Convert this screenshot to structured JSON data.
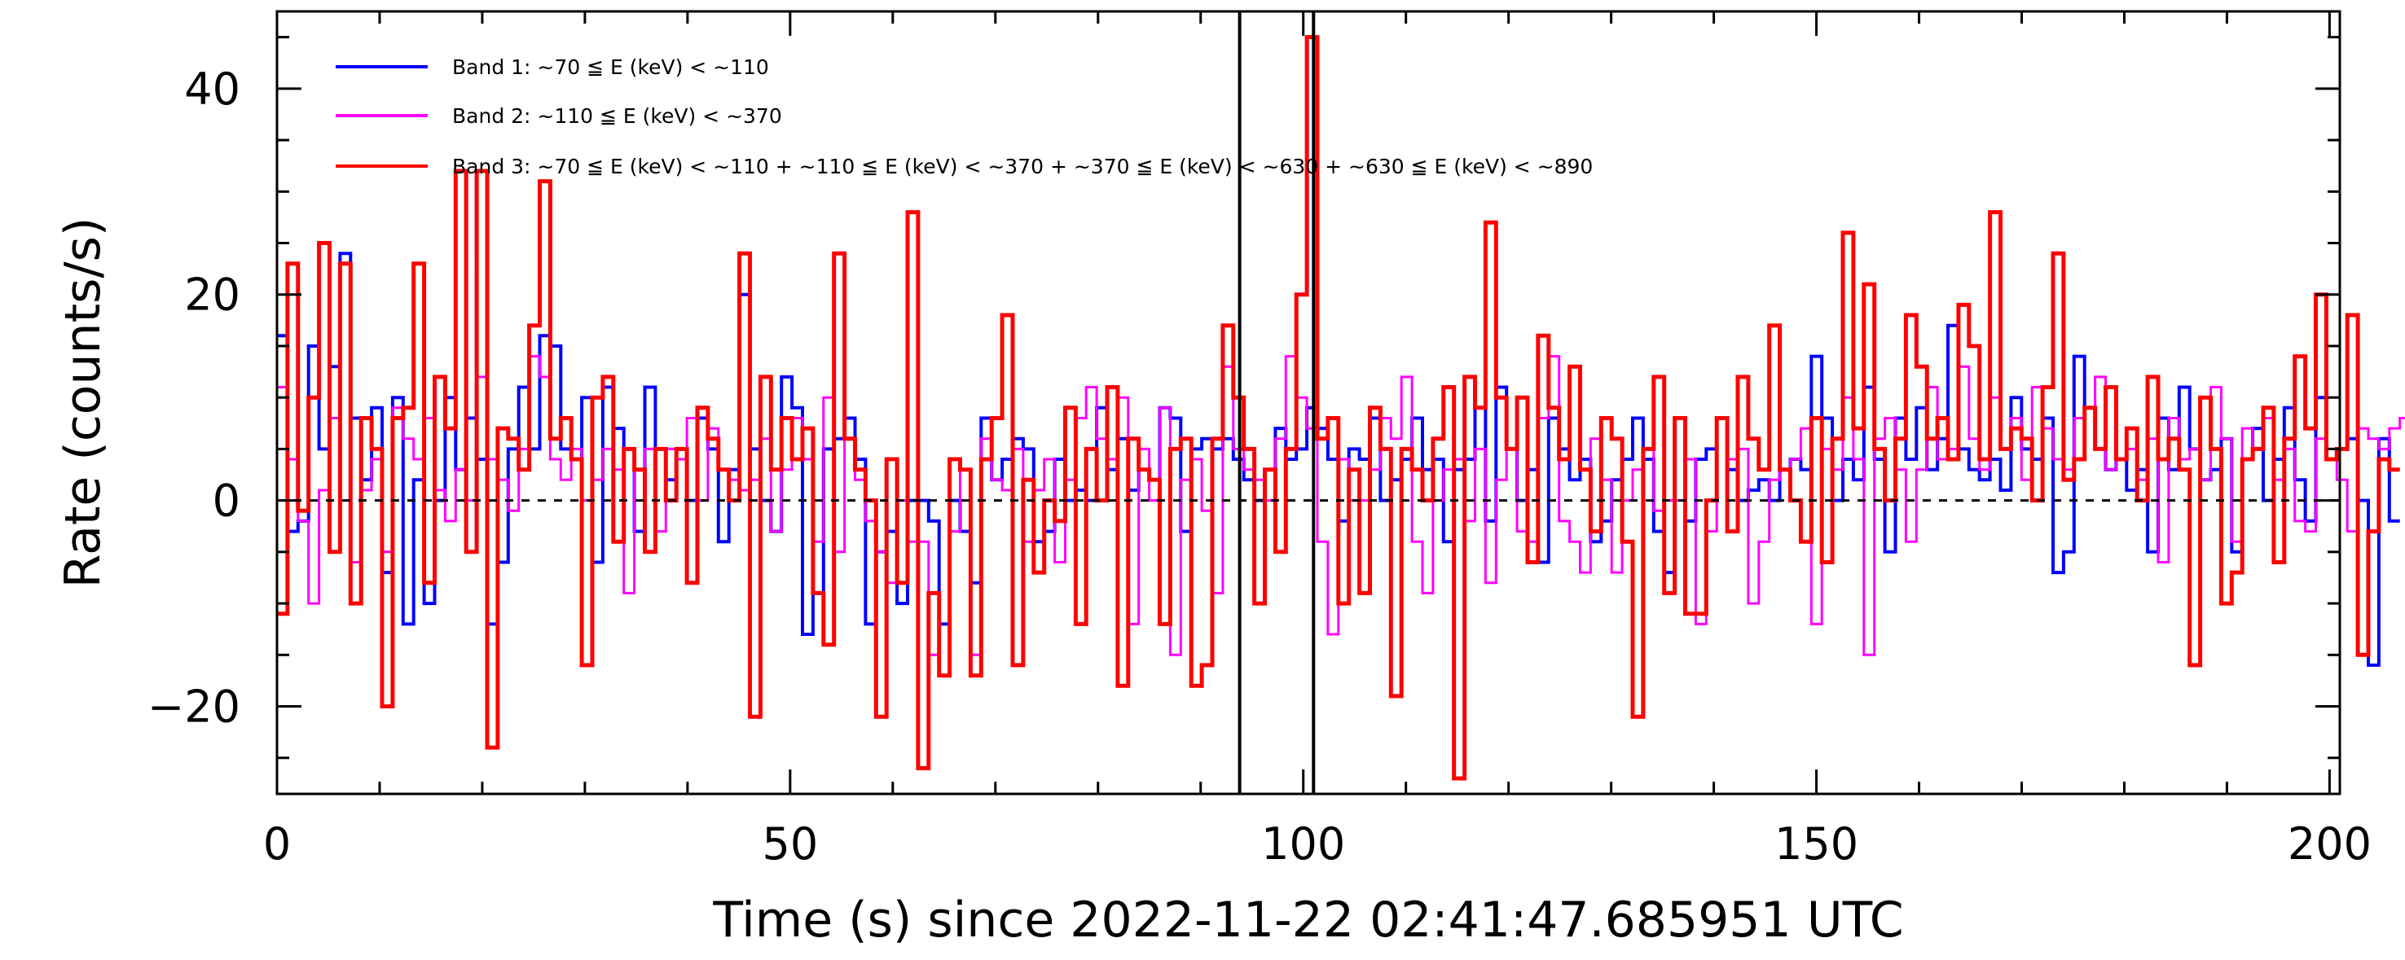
{
  "chart_data": {
    "type": "line",
    "style": "histogram-step",
    "title": "",
    "xlabel": "Time (s) since 2022-11-22 02:41:47.685951 UTC",
    "ylabel": "Rate (counts/s)",
    "xlim": [
      0,
      201
    ],
    "ylim": [
      -28.5,
      47.5
    ],
    "x_ticks": [
      0,
      50,
      100,
      150,
      200
    ],
    "x_tick_labels": [
      "0",
      "50",
      "100",
      "150",
      "200"
    ],
    "y_ticks": [
      -20,
      0,
      20,
      40
    ],
    "y_tick_labels": [
      "−20",
      "0",
      "20",
      "40"
    ],
    "bin_width_s": 1.024,
    "zero_line": 0,
    "markers_x": [
      93.8,
      101.0
    ],
    "legend": [
      "Band 1: ~70 ≦ E (keV) < ~110",
      "Band 2: ~110 ≦ E (keV) < ~370",
      "Band 3: ~70 ≦ E (keV) < ~110 + ~110 ≦ E (keV) < ~370 + ~370 ≦ E (keV) < ~630 + ~630 ≦ E (keV) < ~890"
    ],
    "series": [
      {
        "name": "Band 1: ~70 ≦ E (keV) < ~110",
        "color": "#0000ff",
        "values": [
          16,
          -3,
          -2,
          15,
          5,
          13,
          24,
          8,
          2,
          9,
          -7,
          10,
          -12,
          2,
          -10,
          0,
          10,
          3,
          8,
          4,
          -12,
          -6,
          5,
          11,
          5,
          16,
          15,
          5,
          4,
          10,
          -6,
          11,
          7,
          5,
          -3,
          11,
          5,
          2,
          5,
          0,
          8,
          5,
          -4,
          3,
          20,
          5,
          0,
          -3,
          12,
          9,
          -13,
          -9,
          5,
          6,
          8,
          4,
          -12,
          -5,
          -3,
          -10,
          0,
          0,
          -2,
          -12,
          0,
          -3,
          -8,
          8,
          2,
          4,
          6,
          5,
          -4,
          -3,
          4,
          0,
          1,
          0,
          9,
          3,
          6,
          1,
          3,
          2,
          9,
          8,
          -3,
          5,
          6,
          5,
          6,
          4,
          2,
          0,
          3,
          7,
          4,
          5,
          9,
          7,
          4,
          -2,
          5,
          4,
          8,
          0,
          2,
          4,
          8,
          3,
          4,
          -4,
          3,
          4,
          9,
          -2,
          11,
          5,
          0,
          3,
          -6,
          8,
          5,
          2,
          4,
          -4,
          -2,
          2,
          4,
          8,
          4,
          -3,
          -7,
          8,
          -2,
          4,
          5,
          8,
          3,
          0,
          1,
          2,
          0,
          3,
          4,
          3,
          14,
          8,
          0,
          4,
          2,
          11,
          4,
          -5,
          8,
          4,
          9,
          3,
          6,
          17,
          5,
          3,
          2,
          4,
          1,
          10,
          5,
          4,
          8,
          -7,
          -5,
          14,
          9,
          5,
          3,
          4,
          1,
          3,
          -5,
          8,
          3,
          11,
          5,
          2,
          3,
          6,
          -5,
          4,
          7,
          0,
          4,
          9,
          2,
          -2,
          10,
          4,
          5,
          6,
          0,
          -16,
          6,
          -2
        ]
      },
      {
        "name": "Band 2: ~110 ≦ E (keV) < ~370",
        "color": "#ff00ff",
        "values": [
          11,
          4,
          -2,
          -10,
          1,
          8,
          0,
          -6,
          1,
          4,
          -5,
          9,
          6,
          4,
          8,
          1,
          -2,
          3,
          0,
          12,
          4,
          2,
          -1,
          5,
          14,
          12,
          4,
          2,
          5,
          0,
          2,
          5,
          3,
          -9,
          3,
          5,
          -3,
          5,
          4,
          8,
          0,
          7,
          3,
          2,
          1,
          2,
          6,
          -3,
          3,
          8,
          4,
          -4,
          10,
          -5,
          6,
          2,
          -2,
          -5,
          -8,
          0,
          -4,
          -4,
          -15,
          -17,
          -3,
          3,
          -15,
          6,
          2,
          1,
          5,
          -4,
          1,
          4,
          -6,
          2,
          8,
          11,
          6,
          4,
          10,
          -12,
          5,
          0,
          9,
          -15,
          2,
          4,
          -1,
          -9,
          13,
          5,
          3,
          2,
          0,
          6,
          14,
          10,
          7,
          -4,
          -13,
          4,
          0,
          0,
          3,
          8,
          6,
          12,
          -4,
          -9,
          0,
          3,
          4,
          -2,
          5,
          -8,
          2,
          5,
          -3,
          -4,
          8,
          14,
          -2,
          -4,
          -7,
          6,
          2,
          -7,
          0,
          3,
          5,
          -1,
          0,
          0,
          4,
          -12,
          -3,
          8,
          4,
          5,
          -10,
          -4,
          2,
          3,
          4,
          7,
          -12,
          5,
          3,
          10,
          4,
          -15,
          6,
          8,
          3,
          -4,
          3,
          11,
          4,
          5,
          13,
          6,
          3,
          10,
          5,
          8,
          2,
          11,
          7,
          4,
          3,
          8,
          9,
          12,
          3,
          4,
          5,
          2,
          6,
          -6,
          8,
          4,
          5,
          2,
          11,
          6,
          -4,
          7,
          5,
          8,
          2,
          5,
          -2,
          -3,
          6,
          5,
          2,
          -3,
          7,
          6,
          5,
          7,
          8,
          -16,
          7,
          6
        ]
      },
      {
        "name": "Band 3: ~70 ≦ E (keV) < ~110 + ~110 ≦ E (keV) < ~370 + ~370 ≦ E (keV) < ~630 + ~630 ≦ E (keV) < ~890",
        "color": "#ff0000",
        "values": [
          -11,
          23,
          -1,
          10,
          25,
          -5,
          23,
          -10,
          8,
          5,
          -20,
          8,
          9,
          23,
          -8,
          12,
          7,
          32,
          -5,
          32,
          -24,
          7,
          6,
          3,
          17,
          31,
          6,
          8,
          4,
          -16,
          10,
          12,
          -4,
          5,
          3,
          -5,
          5,
          0,
          5,
          -8,
          9,
          6,
          3,
          0,
          24,
          -21,
          12,
          3,
          8,
          4,
          7,
          -9,
          -14,
          24,
          6,
          3,
          0,
          -21,
          4,
          -8,
          28,
          -26,
          -9,
          -17,
          4,
          3,
          -17,
          4,
          8,
          18,
          -16,
          2,
          -7,
          0,
          -2,
          9,
          -12,
          5,
          0,
          11,
          -18,
          6,
          3,
          2,
          -12,
          5,
          6,
          -18,
          -16,
          6,
          17,
          10,
          5,
          -10,
          3,
          -5,
          5,
          20,
          45,
          6,
          8,
          -10,
          3,
          -9,
          9,
          5,
          -19,
          5,
          3,
          0,
          6,
          11,
          -27,
          12,
          9,
          27,
          10,
          5,
          10,
          -6,
          16,
          9,
          4,
          13,
          3,
          -3,
          8,
          6,
          -4,
          -21,
          5,
          12,
          -9,
          8,
          -11,
          -11,
          0,
          8,
          -3,
          12,
          6,
          3,
          17,
          3,
          0,
          -4,
          8,
          -6,
          6,
          26,
          7,
          21,
          5,
          0,
          6,
          18,
          13,
          6,
          8,
          4,
          19,
          15,
          4,
          28,
          5,
          7,
          6,
          0,
          11,
          24,
          2,
          4,
          9,
          5,
          11,
          4,
          7,
          0,
          12,
          4,
          6,
          3,
          -16,
          10,
          5,
          -10,
          -7,
          4,
          5,
          9,
          -6,
          6,
          14,
          7,
          20,
          4,
          5,
          18,
          -15,
          -3,
          4,
          3
        ]
      }
    ]
  }
}
